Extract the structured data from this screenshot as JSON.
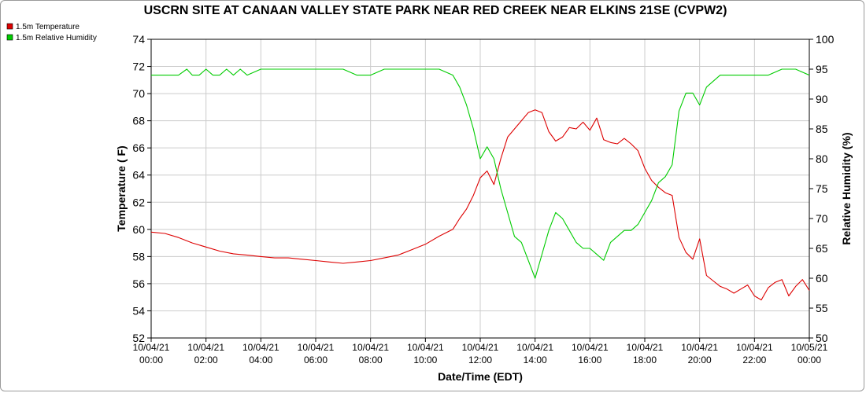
{
  "chart_data": {
    "type": "line",
    "title": "USCRN SITE AT CANAAN VALLEY STATE PARK NEAR RED CREEK NEAR ELKINS 21SE (CVPW2)",
    "xlabel": "Date/Time (EDT)",
    "ylabel_left": "Temperature ( F)",
    "ylabel_right": "Relative Humidity (%)",
    "x_range_hours": [
      0,
      24
    ],
    "ylim_left": [
      52,
      74
    ],
    "ylim_right": [
      50,
      100
    ],
    "y_ticks_left": [
      "52",
      "54",
      "56",
      "58",
      "60",
      "62",
      "64",
      "66",
      "68",
      "70",
      "72",
      "74"
    ],
    "y_ticks_right": [
      "50",
      "55",
      "60",
      "65",
      "70",
      "75",
      "80",
      "85",
      "90",
      "95",
      "100"
    ],
    "x_ticks": [
      {
        "date": "10/04/21",
        "time": "00:00"
      },
      {
        "date": "10/04/21",
        "time": "02:00"
      },
      {
        "date": "10/04/21",
        "time": "04:00"
      },
      {
        "date": "10/04/21",
        "time": "06:00"
      },
      {
        "date": "10/04/21",
        "time": "08:00"
      },
      {
        "date": "10/04/21",
        "time": "10:00"
      },
      {
        "date": "10/04/21",
        "time": "12:00"
      },
      {
        "date": "10/04/21",
        "time": "14:00"
      },
      {
        "date": "10/04/21",
        "time": "16:00"
      },
      {
        "date": "10/04/21",
        "time": "18:00"
      },
      {
        "date": "10/04/21",
        "time": "20:00"
      },
      {
        "date": "10/04/21",
        "time": "22:00"
      },
      {
        "date": "10/05/21",
        "time": "00:00"
      }
    ],
    "grid": true,
    "legend_position": "top-left",
    "series": [
      {
        "name": "1.5m Temperature",
        "axis": "left",
        "color": "#dd0000",
        "x": [
          0,
          0.5,
          1,
          1.5,
          2,
          2.5,
          3,
          3.5,
          4,
          4.5,
          5,
          5.5,
          6,
          6.5,
          7,
          7.5,
          8,
          8.5,
          9,
          9.5,
          10,
          10.5,
          11,
          11.25,
          11.5,
          11.75,
          12,
          12.25,
          12.5,
          12.75,
          13,
          13.25,
          13.5,
          13.75,
          14,
          14.25,
          14.5,
          14.75,
          15,
          15.25,
          15.5,
          15.75,
          16,
          16.25,
          16.5,
          16.75,
          17,
          17.25,
          17.5,
          17.75,
          18,
          18.25,
          18.5,
          18.75,
          19,
          19.25,
          19.5,
          19.75,
          20,
          20.25,
          20.5,
          20.75,
          21,
          21.25,
          21.5,
          21.75,
          22,
          22.25,
          22.5,
          22.75,
          23,
          23.25,
          23.5,
          23.75,
          24
        ],
        "values": [
          59.8,
          59.7,
          59.4,
          59.0,
          58.7,
          58.4,
          58.2,
          58.1,
          58.0,
          57.9,
          57.9,
          57.8,
          57.7,
          57.6,
          57.5,
          57.6,
          57.7,
          57.9,
          58.1,
          58.5,
          58.9,
          59.5,
          60.0,
          60.8,
          61.5,
          62.5,
          63.8,
          64.3,
          63.3,
          65.2,
          66.8,
          67.4,
          68.0,
          68.6,
          68.8,
          68.6,
          67.2,
          66.5,
          66.8,
          67.5,
          67.4,
          67.9,
          67.3,
          68.2,
          66.6,
          66.4,
          66.3,
          66.7,
          66.3,
          65.8,
          64.5,
          63.6,
          63.1,
          62.7,
          62.5,
          59.4,
          58.3,
          57.8,
          59.3,
          56.6,
          56.2,
          55.8,
          55.6,
          55.3,
          55.6,
          55.9,
          55.1,
          54.8,
          55.7,
          56.1,
          56.3,
          55.1,
          55.8,
          56.3,
          55.5
        ]
      },
      {
        "name": "1.5m Relative Humidity",
        "axis": "right",
        "color": "#00cc00",
        "x": [
          0,
          0.5,
          1,
          1.3,
          1.5,
          1.75,
          2,
          2.25,
          2.5,
          2.75,
          3,
          3.25,
          3.5,
          4,
          5,
          6,
          7,
          7.5,
          8,
          8.5,
          9,
          9.5,
          10,
          10.5,
          11,
          11.25,
          11.5,
          11.75,
          12,
          12.25,
          12.5,
          12.75,
          13,
          13.25,
          13.5,
          13.75,
          14,
          14.25,
          14.5,
          14.75,
          15,
          15.25,
          15.5,
          15.75,
          16,
          16.25,
          16.5,
          16.75,
          17,
          17.25,
          17.5,
          17.75,
          18,
          18.25,
          18.5,
          18.75,
          19,
          19.25,
          19.5,
          19.75,
          20,
          20.25,
          20.5,
          20.75,
          21,
          21.5,
          22,
          22.5,
          23,
          23.5,
          24
        ],
        "values": [
          94,
          94,
          94,
          95,
          94,
          94,
          95,
          94,
          94,
          95,
          94,
          95,
          94,
          95,
          95,
          95,
          95,
          94,
          94,
          95,
          95,
          95,
          95,
          95,
          94,
          92,
          89,
          85,
          80,
          82,
          80,
          75,
          71,
          67,
          66,
          63,
          60,
          64,
          68,
          71,
          70,
          68,
          66,
          65,
          65,
          64,
          63,
          66,
          67,
          68,
          68,
          69,
          71,
          73,
          76,
          77,
          79,
          88,
          91,
          91,
          89,
          92,
          93,
          94,
          94,
          94,
          94,
          94,
          95,
          95,
          94
        ]
      }
    ]
  }
}
